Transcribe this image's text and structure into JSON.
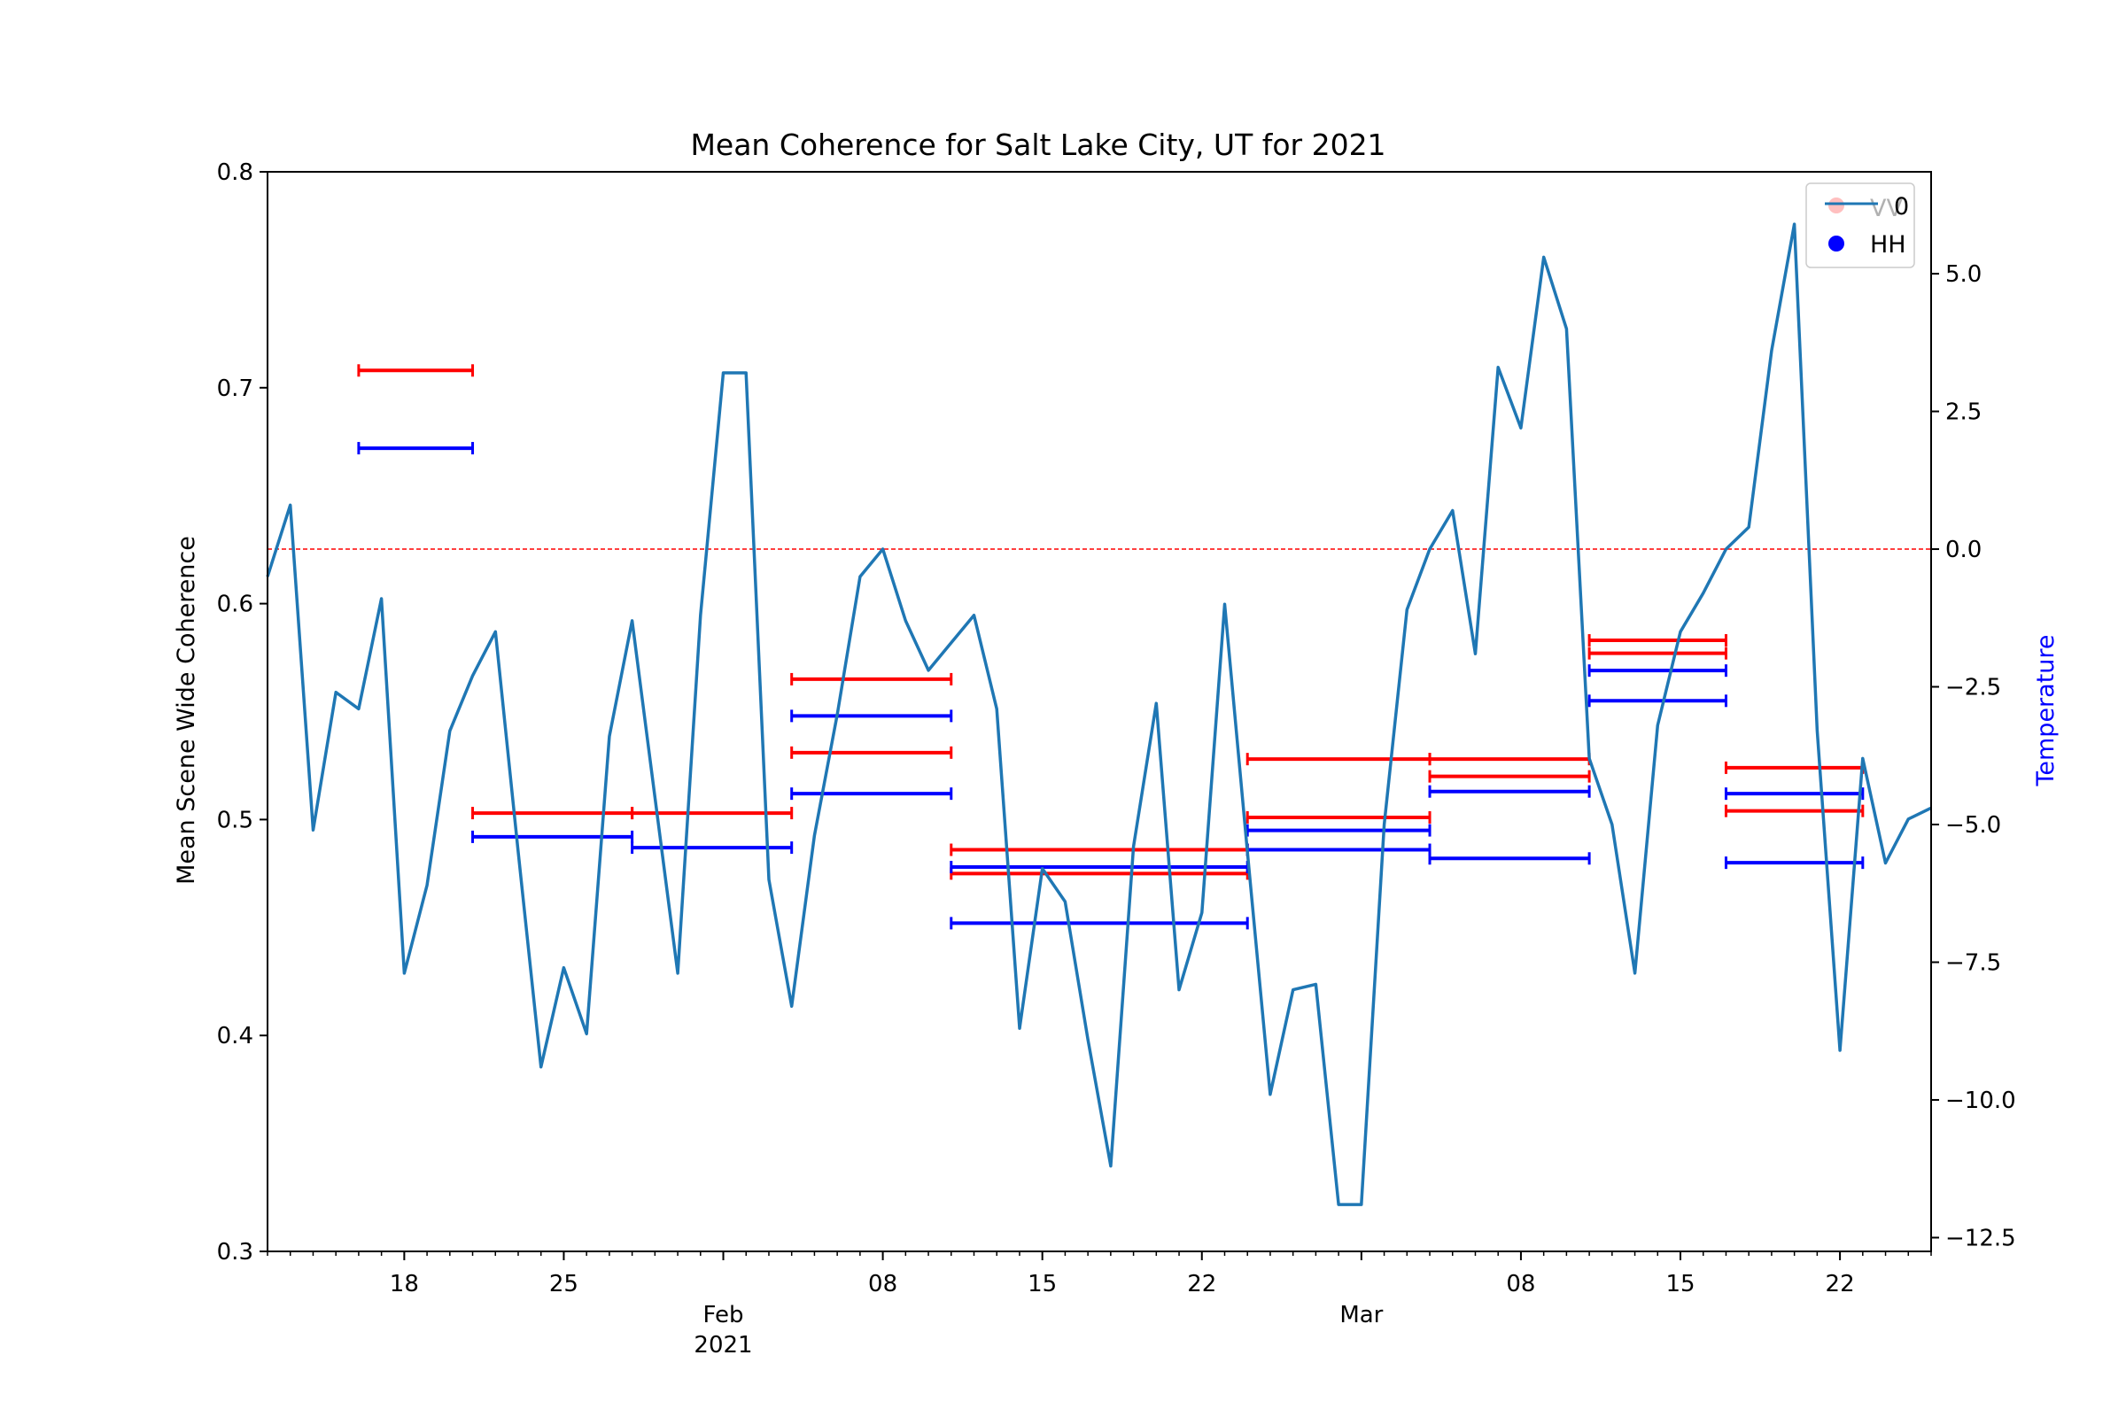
{
  "chart_data": {
    "type": "line",
    "title": "Mean Coherence for Salt Lake City, UT for 2021",
    "xlabel": "",
    "ylabel": "Mean Scene Wide Coherence",
    "y2label": "Temperature",
    "x_range": [
      "2021-01-12",
      "2021-03-26"
    ],
    "ylim": [
      0.3,
      0.8
    ],
    "y2lim": [
      -12.75,
      6.85
    ],
    "x_major_ticks": [
      {
        "date": "2021-01-18",
        "label": "18"
      },
      {
        "date": "2021-01-25",
        "label": "25"
      },
      {
        "date": "2021-02-01",
        "label": "Feb\n2021"
      },
      {
        "date": "2021-02-08",
        "label": "08"
      },
      {
        "date": "2021-02-15",
        "label": "15"
      },
      {
        "date": "2021-02-22",
        "label": "22"
      },
      {
        "date": "2021-03-01",
        "label": "Mar"
      },
      {
        "date": "2021-03-08",
        "label": "08"
      },
      {
        "date": "2021-03-15",
        "label": "15"
      },
      {
        "date": "2021-03-22",
        "label": "22"
      }
    ],
    "y_ticks": [
      "0.3",
      "0.4",
      "0.5",
      "0.6",
      "0.7",
      "0.8"
    ],
    "y2_ticks": [
      "−12.5",
      "−10.0",
      "−7.5",
      "−5.0",
      "−2.5",
      "0.0",
      "2.5",
      "5.0"
    ],
    "legend": {
      "placement": "upper right",
      "entries": [
        "VV",
        "HH"
      ],
      "overlay_label": "0"
    },
    "grid": false,
    "reference_line": {
      "axis": "y2",
      "value": 0.0,
      "color": "#ff0000",
      "style": "dashed"
    },
    "temperature_series": {
      "name": "0",
      "color": "#1f77b4",
      "x": [
        "2021-01-12",
        "2021-01-13",
        "2021-01-14",
        "2021-01-15",
        "2021-01-16",
        "2021-01-17",
        "2021-01-18",
        "2021-01-19",
        "2021-01-20",
        "2021-01-21",
        "2021-01-22",
        "2021-01-23",
        "2021-01-24",
        "2021-01-25",
        "2021-01-26",
        "2021-01-27",
        "2021-01-28",
        "2021-01-29",
        "2021-01-30",
        "2021-01-31",
        "2021-02-01",
        "2021-02-02",
        "2021-02-03",
        "2021-02-04",
        "2021-02-05",
        "2021-02-06",
        "2021-02-07",
        "2021-02-08",
        "2021-02-09",
        "2021-02-10",
        "2021-02-11",
        "2021-02-12",
        "2021-02-13",
        "2021-02-14",
        "2021-02-15",
        "2021-02-16",
        "2021-02-17",
        "2021-02-18",
        "2021-02-19",
        "2021-02-20",
        "2021-02-21",
        "2021-02-22",
        "2021-02-23",
        "2021-02-24",
        "2021-02-25",
        "2021-02-26",
        "2021-02-27",
        "2021-02-28",
        "2021-03-01",
        "2021-03-02",
        "2021-03-03",
        "2021-03-04",
        "2021-03-05",
        "2021-03-06",
        "2021-03-07",
        "2021-03-08",
        "2021-03-09",
        "2021-03-10",
        "2021-03-11",
        "2021-03-12",
        "2021-03-13",
        "2021-03-14",
        "2021-03-15",
        "2021-03-16",
        "2021-03-17",
        "2021-03-18",
        "2021-03-19",
        "2021-03-20",
        "2021-03-21",
        "2021-03-22",
        "2021-03-23",
        "2021-03-24",
        "2021-03-25",
        "2021-03-26"
      ],
      "values": [
        -0.5,
        0.8,
        -5.1,
        -2.6,
        -2.9,
        -0.9,
        -7.7,
        -6.1,
        -3.3,
        -2.3,
        -1.5,
        -5.5,
        -9.4,
        -7.6,
        -8.8,
        -3.4,
        -1.3,
        -4.5,
        -7.7,
        -1.2,
        3.2,
        3.2,
        -6.0,
        -8.3,
        -5.2,
        -3.0,
        -0.5,
        -0.0,
        -1.3,
        -2.2,
        -1.7,
        -1.2,
        -2.9,
        -8.7,
        -5.8,
        -6.4,
        -8.9,
        -11.2,
        -5.4,
        -2.8,
        -8.0,
        -6.6,
        -1.0,
        -5.5,
        -9.9,
        -8.0,
        -7.9,
        -11.9,
        -11.9,
        -5.0,
        -1.1,
        -0.0,
        0.7,
        -1.9,
        3.3,
        2.2,
        5.3,
        4.0,
        -3.8,
        -5.0,
        -7.7,
        -3.2,
        -1.5,
        -0.8,
        -0.0,
        0.4,
        3.6,
        5.9,
        -3.3,
        -9.1,
        -3.8,
        -5.7,
        -4.9,
        -4.7
      ]
    },
    "interval_series": [
      {
        "name": "VV",
        "color": "#ff0000",
        "intervals": [
          {
            "start": "2021-01-16",
            "end": "2021-01-21",
            "value": 0.708
          },
          {
            "start": "2021-01-21",
            "end": "2021-01-28",
            "value": 0.503
          },
          {
            "start": "2021-01-28",
            "end": "2021-02-04",
            "value": 0.503
          },
          {
            "start": "2021-02-04",
            "end": "2021-02-11",
            "value": 0.565
          },
          {
            "start": "2021-02-04",
            "end": "2021-02-11",
            "value": 0.531
          },
          {
            "start": "2021-02-11",
            "end": "2021-02-24",
            "value": 0.486
          },
          {
            "start": "2021-02-11",
            "end": "2021-02-24",
            "value": 0.475
          },
          {
            "start": "2021-02-24",
            "end": "2021-03-04",
            "value": 0.528
          },
          {
            "start": "2021-02-24",
            "end": "2021-03-04",
            "value": 0.501
          },
          {
            "start": "2021-03-04",
            "end": "2021-03-11",
            "value": 0.528
          },
          {
            "start": "2021-03-04",
            "end": "2021-03-11",
            "value": 0.52
          },
          {
            "start": "2021-03-11",
            "end": "2021-03-17",
            "value": 0.583
          },
          {
            "start": "2021-03-11",
            "end": "2021-03-17",
            "value": 0.577
          },
          {
            "start": "2021-03-17",
            "end": "2021-03-23",
            "value": 0.524
          },
          {
            "start": "2021-03-17",
            "end": "2021-03-23",
            "value": 0.504
          }
        ]
      },
      {
        "name": "HH",
        "color": "#0000ff",
        "intervals": [
          {
            "start": "2021-01-16",
            "end": "2021-01-21",
            "value": 0.672
          },
          {
            "start": "2021-01-21",
            "end": "2021-01-28",
            "value": 0.492
          },
          {
            "start": "2021-01-28",
            "end": "2021-02-04",
            "value": 0.487
          },
          {
            "start": "2021-02-04",
            "end": "2021-02-11",
            "value": 0.548
          },
          {
            "start": "2021-02-04",
            "end": "2021-02-11",
            "value": 0.512
          },
          {
            "start": "2021-02-11",
            "end": "2021-02-24",
            "value": 0.478
          },
          {
            "start": "2021-02-11",
            "end": "2021-02-24",
            "value": 0.452
          },
          {
            "start": "2021-02-24",
            "end": "2021-03-04",
            "value": 0.495
          },
          {
            "start": "2021-02-24",
            "end": "2021-03-04",
            "value": 0.486
          },
          {
            "start": "2021-03-04",
            "end": "2021-03-11",
            "value": 0.513
          },
          {
            "start": "2021-03-04",
            "end": "2021-03-11",
            "value": 0.482
          },
          {
            "start": "2021-03-11",
            "end": "2021-03-17",
            "value": 0.569
          },
          {
            "start": "2021-03-11",
            "end": "2021-03-17",
            "value": 0.555
          },
          {
            "start": "2021-03-17",
            "end": "2021-03-23",
            "value": 0.512
          },
          {
            "start": "2021-03-17",
            "end": "2021-03-23",
            "value": 0.48
          }
        ]
      }
    ]
  }
}
